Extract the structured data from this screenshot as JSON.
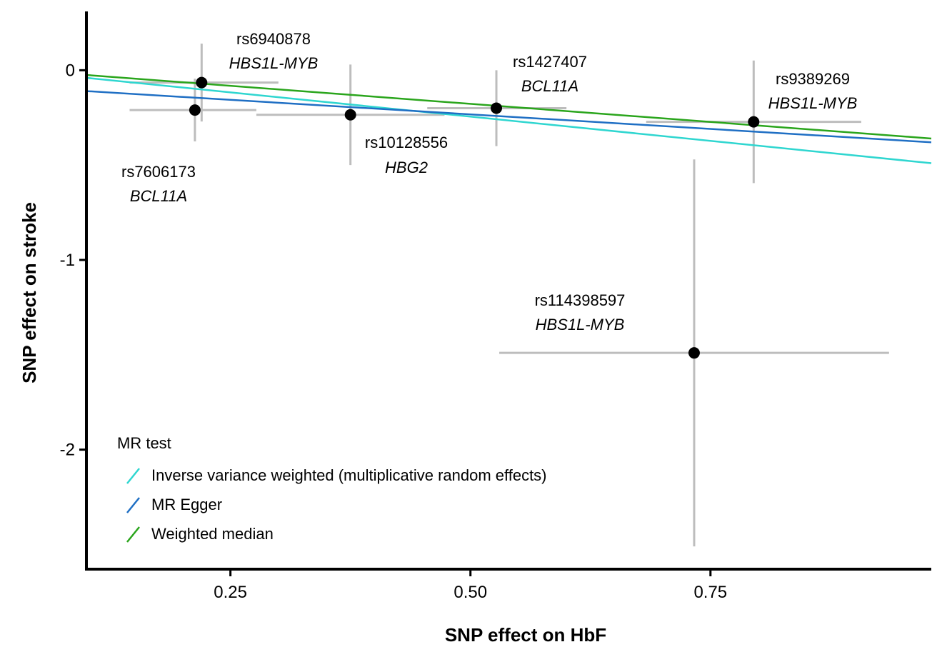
{
  "chart_data": {
    "type": "scatter",
    "xlabel": "SNP effect on HbF",
    "ylabel": "SNP effect on stroke",
    "xlim": [
      0.1,
      0.98
    ],
    "ylim": [
      -2.63,
      0.31
    ],
    "xticks": [
      0.25,
      0.5,
      0.75
    ],
    "xtick_labels": [
      "0.25",
      "0.50",
      "0.75"
    ],
    "yticks": [
      0,
      -1,
      -2
    ],
    "ytick_labels": [
      "0",
      "-1",
      "-2"
    ],
    "points": [
      {
        "snp": "rs6940878",
        "gene": "HBS1L-MYB",
        "x": 0.22,
        "y": -0.065,
        "x_lo": 0.145,
        "x_hi": 0.3,
        "y_lo": -0.27,
        "y_hi": 0.14
      },
      {
        "snp": "rs7606173",
        "gene": "BCL11A",
        "x": 0.213,
        "y": -0.21,
        "x_lo": 0.145,
        "x_hi": 0.277,
        "y_lo": -0.375,
        "y_hi": -0.045
      },
      {
        "snp": "rs10128556",
        "gene": "HBG2",
        "x": 0.375,
        "y": -0.235,
        "x_lo": 0.277,
        "x_hi": 0.473,
        "y_lo": -0.5,
        "y_hi": 0.03
      },
      {
        "snp": "rs1427407",
        "gene": "BCL11A",
        "x": 0.527,
        "y": -0.2,
        "x_lo": 0.455,
        "x_hi": 0.6,
        "y_lo": -0.4,
        "y_hi": 0.0
      },
      {
        "snp": "rs9389269",
        "gene": "HBS1L-MYB",
        "x": 0.795,
        "y": -0.272,
        "x_lo": 0.683,
        "x_hi": 0.907,
        "y_lo": -0.595,
        "y_hi": 0.051
      },
      {
        "snp": "rs114398597",
        "gene": "HBS1L-MYB",
        "x": 0.733,
        "y": -1.49,
        "x_lo": 0.53,
        "x_hi": 0.936,
        "y_lo": -2.51,
        "y_hi": -0.47
      }
    ],
    "lines": [
      {
        "name": "Inverse variance weighted (multiplicative random effects)",
        "color": "#2fd6d0",
        "x0": 0.1,
        "y0": -0.04,
        "x1": 0.98,
        "y1": -0.49
      },
      {
        "name": "MR Egger",
        "color": "#1f6fc4",
        "x0": 0.1,
        "y0": -0.11,
        "x1": 0.98,
        "y1": -0.38
      },
      {
        "name": "Weighted median",
        "color": "#2aa51c",
        "x0": 0.1,
        "y0": -0.025,
        "x1": 0.98,
        "y1": -0.36
      }
    ],
    "legend": {
      "title": "MR test",
      "position": "bottom-left",
      "entries": [
        "Inverse variance weighted (multiplicative random effects)",
        "MR Egger",
        "Weighted median"
      ]
    }
  }
}
